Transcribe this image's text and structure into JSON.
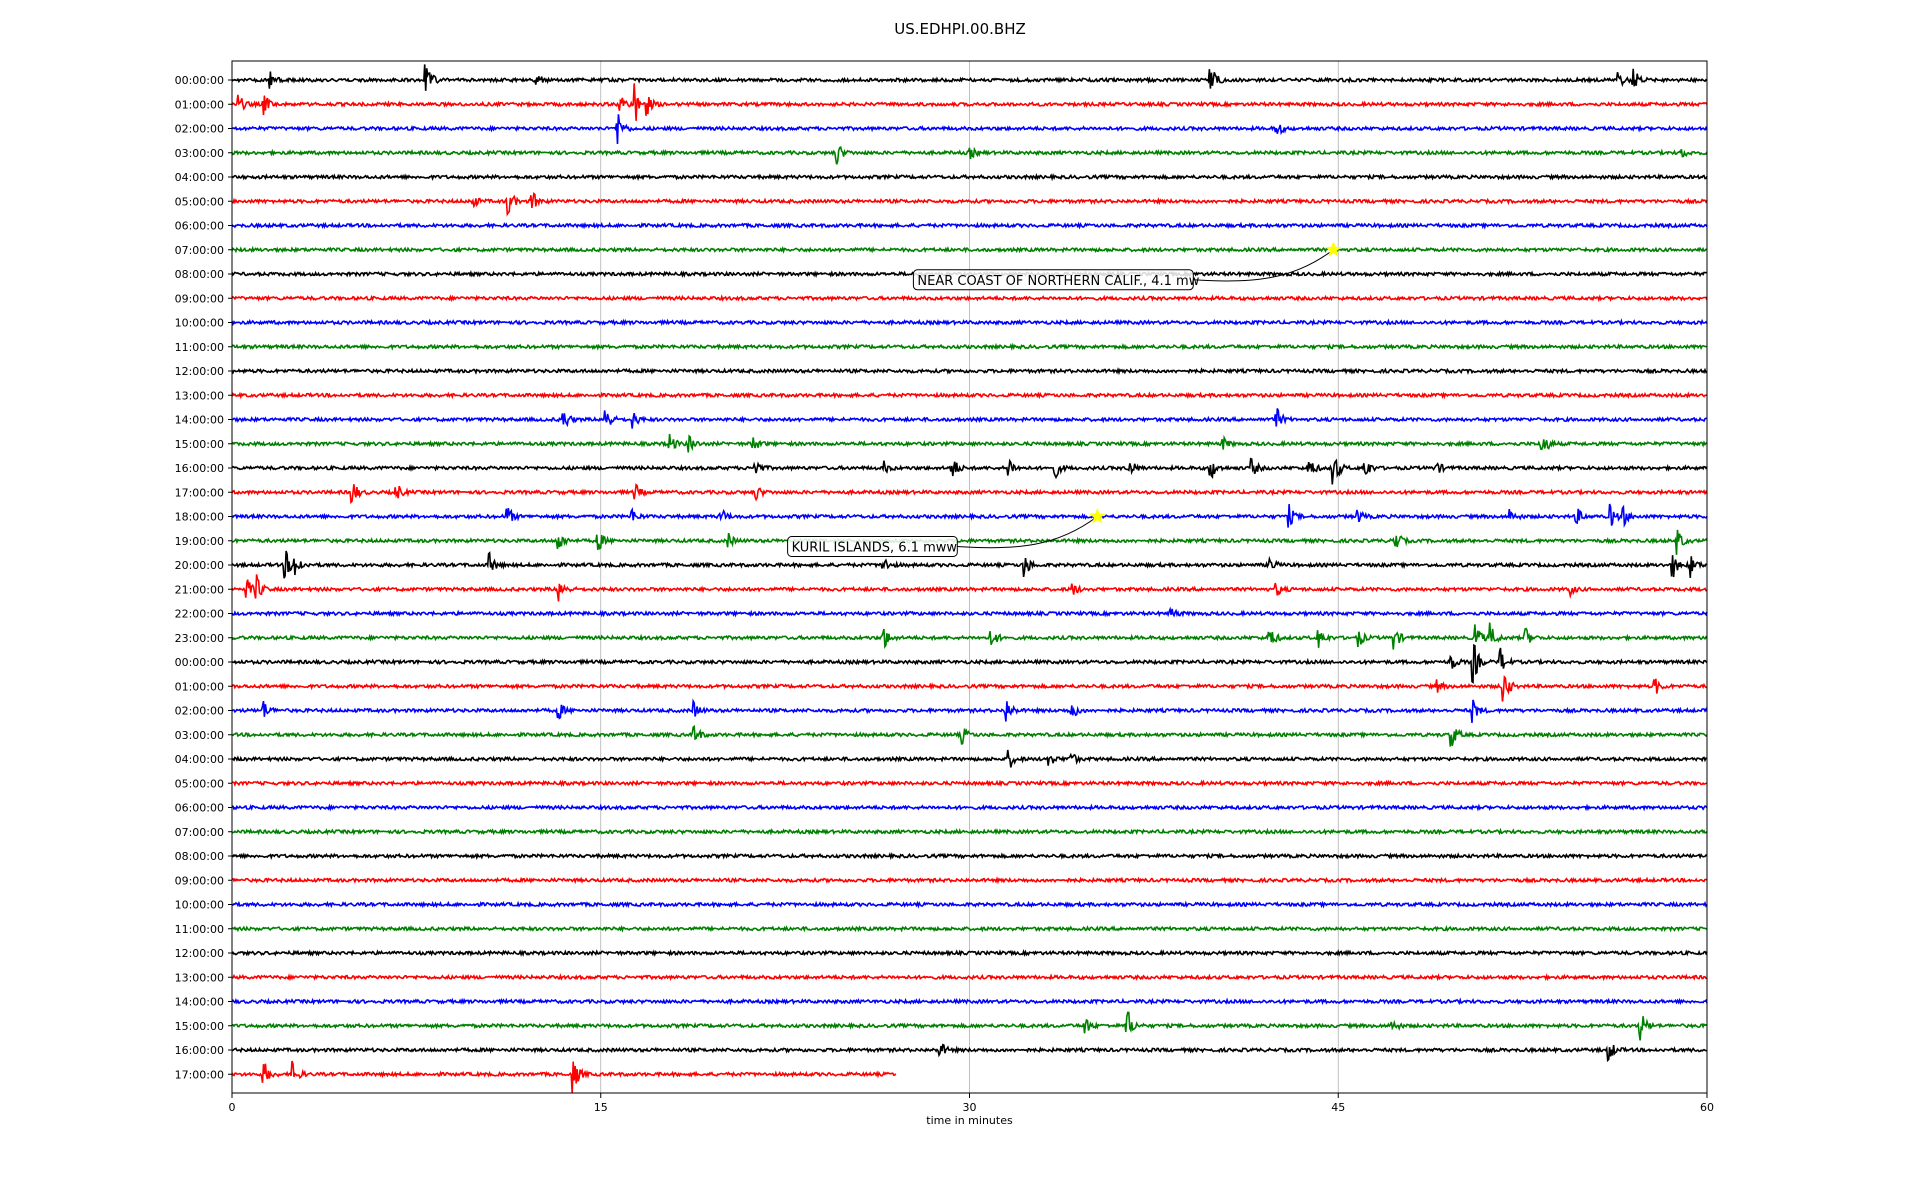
{
  "chart_data": {
    "type": "line",
    "title": "US.EDHPI.00.BHZ",
    "xlabel": "time in minutes",
    "ylabel": "",
    "xlim": [
      0,
      60
    ],
    "x_ticks": [
      0,
      15,
      30,
      45,
      60
    ],
    "grid": "vertical lines at x ticks",
    "trace_colors": [
      "#000000",
      "#ff0000",
      "#0000ff",
      "#008000"
    ],
    "row_labels": [
      "00:00:00",
      "01:00:00",
      "02:00:00",
      "03:00:00",
      "04:00:00",
      "05:00:00",
      "06:00:00",
      "07:00:00",
      "08:00:00",
      "09:00:00",
      "10:00:00",
      "11:00:00",
      "12:00:00",
      "13:00:00",
      "14:00:00",
      "15:00:00",
      "16:00:00",
      "17:00:00",
      "18:00:00",
      "19:00:00",
      "20:00:00",
      "21:00:00",
      "22:00:00",
      "23:00:00",
      "00:00:00",
      "01:00:00",
      "02:00:00",
      "03:00:00",
      "04:00:00",
      "05:00:00",
      "06:00:00",
      "07:00:00",
      "08:00:00",
      "09:00:00",
      "10:00:00",
      "11:00:00",
      "12:00:00",
      "13:00:00",
      "14:00:00",
      "15:00:00",
      "16:00:00",
      "17:00:00"
    ],
    "last_row_end_minute": 27,
    "event_bursts": [
      {
        "row": 0,
        "minute": 1.6,
        "amp": 0.4
      },
      {
        "row": 0,
        "minute": 7.9,
        "amp": 0.9
      },
      {
        "row": 0,
        "minute": 12.4,
        "amp": 0.3
      },
      {
        "row": 0,
        "minute": 39.8,
        "amp": 0.9
      },
      {
        "row": 0,
        "minute": 56.4,
        "amp": 0.4
      },
      {
        "row": 0,
        "minute": 57.0,
        "amp": 0.6
      },
      {
        "row": 1,
        "minute": 0.3,
        "amp": 0.4
      },
      {
        "row": 1,
        "minute": 1.3,
        "amp": 0.5
      },
      {
        "row": 1,
        "minute": 15.8,
        "amp": 0.5
      },
      {
        "row": 1,
        "minute": 16.4,
        "amp": 1.0
      },
      {
        "row": 1,
        "minute": 16.9,
        "amp": 0.4
      },
      {
        "row": 2,
        "minute": 15.7,
        "amp": 0.8
      },
      {
        "row": 2,
        "minute": 42.5,
        "amp": 0.4
      },
      {
        "row": 3,
        "minute": 24.6,
        "amp": 0.6
      },
      {
        "row": 3,
        "minute": 30.0,
        "amp": 0.3
      },
      {
        "row": 3,
        "minute": 59.0,
        "amp": 0.2
      },
      {
        "row": 5,
        "minute": 9.8,
        "amp": 0.3
      },
      {
        "row": 5,
        "minute": 11.2,
        "amp": 0.8
      },
      {
        "row": 5,
        "minute": 12.2,
        "amp": 0.5
      },
      {
        "row": 14,
        "minute": 13.5,
        "amp": 0.5
      },
      {
        "row": 14,
        "minute": 15.2,
        "amp": 0.7
      },
      {
        "row": 14,
        "minute": 16.3,
        "amp": 0.4
      },
      {
        "row": 14,
        "minute": 42.5,
        "amp": 0.5
      },
      {
        "row": 15,
        "minute": 17.8,
        "amp": 0.5
      },
      {
        "row": 15,
        "minute": 18.6,
        "amp": 0.4
      },
      {
        "row": 15,
        "minute": 21.2,
        "amp": 0.4
      },
      {
        "row": 15,
        "minute": 40.3,
        "amp": 0.3
      },
      {
        "row": 15,
        "minute": 53.3,
        "amp": 0.7
      },
      {
        "row": 16,
        "minute": 21.3,
        "amp": 0.4
      },
      {
        "row": 16,
        "minute": 26.5,
        "amp": 0.3
      },
      {
        "row": 16,
        "minute": 29.3,
        "amp": 0.6
      },
      {
        "row": 16,
        "minute": 31.6,
        "amp": 0.5
      },
      {
        "row": 16,
        "minute": 33.5,
        "amp": 0.4
      },
      {
        "row": 16,
        "minute": 36.5,
        "amp": 0.5
      },
      {
        "row": 16,
        "minute": 39.8,
        "amp": 0.6
      },
      {
        "row": 16,
        "minute": 41.5,
        "amp": 0.4
      },
      {
        "row": 16,
        "minute": 43.8,
        "amp": 0.6
      },
      {
        "row": 16,
        "minute": 44.8,
        "amp": 1.0
      },
      {
        "row": 16,
        "minute": 46.1,
        "amp": 0.5
      },
      {
        "row": 16,
        "minute": 49.0,
        "amp": 0.3
      },
      {
        "row": 17,
        "minute": 4.9,
        "amp": 0.6
      },
      {
        "row": 17,
        "minute": 6.7,
        "amp": 0.4
      },
      {
        "row": 17,
        "minute": 16.4,
        "amp": 0.4
      },
      {
        "row": 17,
        "minute": 21.3,
        "amp": 0.4
      },
      {
        "row": 18,
        "minute": 11.2,
        "amp": 0.5
      },
      {
        "row": 18,
        "minute": 16.3,
        "amp": 0.3
      },
      {
        "row": 18,
        "minute": 19.9,
        "amp": 0.4
      },
      {
        "row": 18,
        "minute": 43.0,
        "amp": 0.5
      },
      {
        "row": 18,
        "minute": 45.8,
        "amp": 0.3
      },
      {
        "row": 18,
        "minute": 52.0,
        "amp": 0.3
      },
      {
        "row": 18,
        "minute": 54.7,
        "amp": 0.4
      },
      {
        "row": 18,
        "minute": 56.1,
        "amp": 0.5
      },
      {
        "row": 18,
        "minute": 56.6,
        "amp": 0.4
      },
      {
        "row": 19,
        "minute": 13.3,
        "amp": 0.5
      },
      {
        "row": 19,
        "minute": 14.9,
        "amp": 0.5
      },
      {
        "row": 19,
        "minute": 20.2,
        "amp": 0.3
      },
      {
        "row": 19,
        "minute": 47.3,
        "amp": 0.6
      },
      {
        "row": 19,
        "minute": 58.8,
        "amp": 0.6
      },
      {
        "row": 20,
        "minute": 2.2,
        "amp": 0.6
      },
      {
        "row": 20,
        "minute": 2.6,
        "amp": 0.5
      },
      {
        "row": 20,
        "minute": 10.5,
        "amp": 0.5
      },
      {
        "row": 20,
        "minute": 26.5,
        "amp": 0.4
      },
      {
        "row": 20,
        "minute": 32.2,
        "amp": 0.7
      },
      {
        "row": 20,
        "minute": 42.2,
        "amp": 0.4
      },
      {
        "row": 20,
        "minute": 58.6,
        "amp": 0.6
      },
      {
        "row": 20,
        "minute": 59.3,
        "amp": 0.6
      },
      {
        "row": 21,
        "minute": 0.6,
        "amp": 0.5
      },
      {
        "row": 21,
        "minute": 1.0,
        "amp": 0.6
      },
      {
        "row": 21,
        "minute": 13.3,
        "amp": 0.6
      },
      {
        "row": 21,
        "minute": 34.2,
        "amp": 0.3
      },
      {
        "row": 21,
        "minute": 42.5,
        "amp": 0.3
      },
      {
        "row": 21,
        "minute": 54.4,
        "amp": 0.3
      },
      {
        "row": 22,
        "minute": 38.2,
        "amp": 0.3
      },
      {
        "row": 23,
        "minute": 26.5,
        "amp": 0.6
      },
      {
        "row": 23,
        "minute": 30.9,
        "amp": 0.5
      },
      {
        "row": 23,
        "minute": 42.2,
        "amp": 0.6
      },
      {
        "row": 23,
        "minute": 44.2,
        "amp": 0.5
      },
      {
        "row": 23,
        "minute": 45.8,
        "amp": 0.5
      },
      {
        "row": 23,
        "minute": 47.3,
        "amp": 0.5
      },
      {
        "row": 23,
        "minute": 50.6,
        "amp": 0.7
      },
      {
        "row": 23,
        "minute": 51.2,
        "amp": 0.6
      },
      {
        "row": 23,
        "minute": 52.6,
        "amp": 0.5
      },
      {
        "row": 24,
        "minute": 49.6,
        "amp": 0.4
      },
      {
        "row": 24,
        "minute": 50.5,
        "amp": 1.0
      },
      {
        "row": 24,
        "minute": 51.6,
        "amp": 0.6
      },
      {
        "row": 25,
        "minute": 49.0,
        "amp": 0.3
      },
      {
        "row": 25,
        "minute": 51.7,
        "amp": 1.0
      },
      {
        "row": 25,
        "minute": 57.9,
        "amp": 0.4
      },
      {
        "row": 26,
        "minute": 1.3,
        "amp": 0.4
      },
      {
        "row": 26,
        "minute": 13.3,
        "amp": 0.4
      },
      {
        "row": 26,
        "minute": 18.8,
        "amp": 0.4
      },
      {
        "row": 26,
        "minute": 31.5,
        "amp": 0.6
      },
      {
        "row": 26,
        "minute": 34.1,
        "amp": 0.6
      },
      {
        "row": 26,
        "minute": 50.5,
        "amp": 0.5
      },
      {
        "row": 27,
        "minute": 18.8,
        "amp": 0.5
      },
      {
        "row": 27,
        "minute": 29.7,
        "amp": 0.4
      },
      {
        "row": 27,
        "minute": 49.6,
        "amp": 0.7
      },
      {
        "row": 28,
        "minute": 31.6,
        "amp": 0.5
      },
      {
        "row": 28,
        "minute": 33.2,
        "amp": 0.4
      },
      {
        "row": 28,
        "minute": 34.1,
        "amp": 0.4
      },
      {
        "row": 39,
        "minute": 34.7,
        "amp": 0.4
      },
      {
        "row": 39,
        "minute": 36.4,
        "amp": 0.9
      },
      {
        "row": 39,
        "minute": 47.2,
        "amp": 0.3
      },
      {
        "row": 39,
        "minute": 57.3,
        "amp": 0.7
      },
      {
        "row": 40,
        "minute": 28.8,
        "amp": 0.4
      },
      {
        "row": 40,
        "minute": 56.0,
        "amp": 0.6
      },
      {
        "row": 41,
        "minute": 1.3,
        "amp": 0.6
      },
      {
        "row": 41,
        "minute": 2.5,
        "amp": 0.6
      },
      {
        "row": 41,
        "minute": 13.9,
        "amp": 0.8
      }
    ],
    "annotations": [
      {
        "text": "NEAR COAST OF NORTHERN CALIF., 4.1 mw",
        "row": 7,
        "minute": 44.8
      },
      {
        "text": "KURIL ISLANDS, 6.1 mww",
        "row": 18,
        "minute": 35.2
      }
    ]
  }
}
